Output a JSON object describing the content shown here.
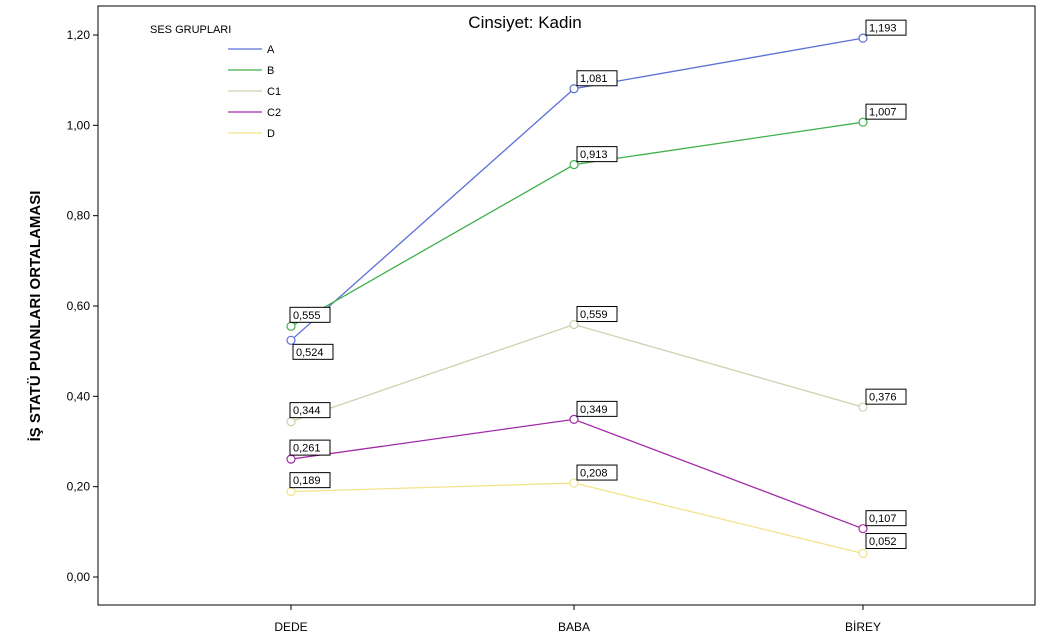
{
  "chart_data": {
    "type": "line",
    "title": "Cinsiyet: Kadin",
    "xlabel": "",
    "ylabel": "İŞ STATÜ PUANLARI ORTALAMASI",
    "categories": [
      "DEDE",
      "BABA",
      "BİREY"
    ],
    "ylim": [
      0,
      1.2
    ],
    "yticks": [
      "0,00",
      "0,20",
      "0,40",
      "0,60",
      "0,80",
      "1,00",
      "1,20"
    ],
    "legend_title": "SES GRUPLARI",
    "legend_position": "top-left",
    "grid": false,
    "series": [
      {
        "name": "A",
        "color": "#5b6fd6",
        "values": [
          0.524,
          1.081,
          1.193
        ],
        "labels": [
          "0,524",
          "1,081",
          "1,193"
        ]
      },
      {
        "name": "B",
        "color": "#3fb14a",
        "values": [
          0.555,
          0.913,
          1.007
        ],
        "labels": [
          "0,555",
          "0,913",
          "1,007"
        ]
      },
      {
        "name": "C1",
        "color": "#d2ceb0",
        "values": [
          0.344,
          0.559,
          0.376
        ],
        "labels": [
          "0,344",
          "0,559",
          "0,376"
        ]
      },
      {
        "name": "C2",
        "color": "#a22aa8",
        "values": [
          0.261,
          0.349,
          0.107
        ],
        "labels": [
          "0,261",
          "0,349",
          "0,107"
        ]
      },
      {
        "name": "D",
        "color": "#f2e38a",
        "values": [
          0.189,
          0.208,
          0.052
        ],
        "labels": [
          "0,189",
          "0,208",
          "0,052"
        ]
      }
    ]
  }
}
